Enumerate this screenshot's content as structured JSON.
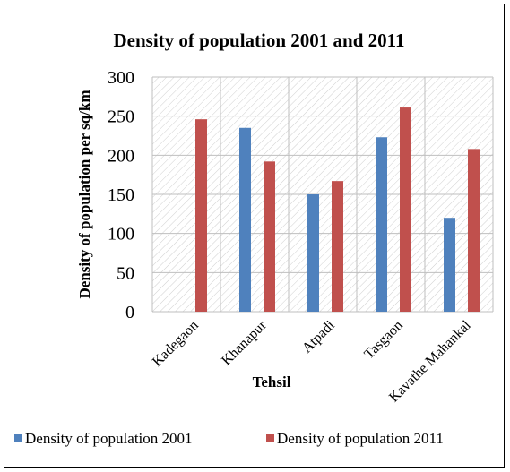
{
  "chart_data": {
    "type": "bar",
    "title": "Density of population 2001 and 2011",
    "xlabel": "Tehsil",
    "ylabel": "Density of population per sq/km",
    "categories": [
      "Kadegaon",
      "Khanapur",
      "Atpadi",
      "Tasgaon",
      "Kavathe Mahankal"
    ],
    "series": [
      {
        "name": "Density of population 2001",
        "color": "#4f81bd",
        "values": [
          0,
          235,
          150,
          223,
          120
        ]
      },
      {
        "name": "Density of population 2011",
        "color": "#c0504d",
        "values": [
          246,
          192,
          167,
          261,
          208
        ]
      }
    ],
    "ylim": [
      0,
      300
    ],
    "yticks": [
      0,
      50,
      100,
      150,
      200,
      250,
      300
    ],
    "grid": true,
    "legend_position": "bottom"
  }
}
